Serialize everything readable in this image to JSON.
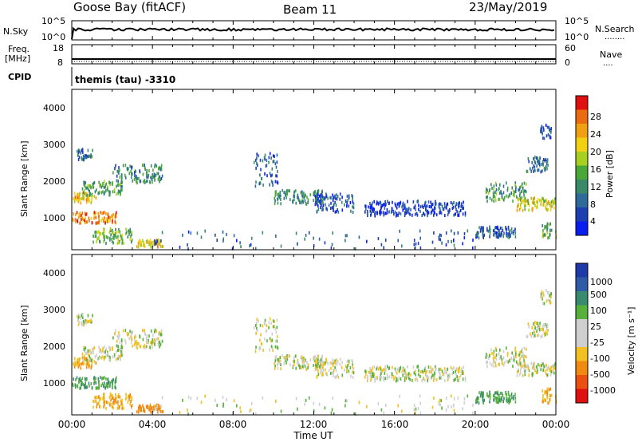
{
  "header": {
    "station": "Goose Bay (fitACF)",
    "beam": "Beam 11",
    "date": "23/May/2019"
  },
  "sky_panel": {
    "left_label": "N.Sky",
    "right_label": "N.Search",
    "left_ticks": [
      "10^5",
      "10^0"
    ],
    "right_ticks": [
      "10^5",
      "10^0"
    ],
    "right_dots": "........"
  },
  "freq_panel": {
    "left_label_top": "Freq.",
    "left_label_bottom": "[MHz]",
    "right_label": "Nave",
    "left_ticks": [
      "18",
      "8"
    ],
    "right_ticks": [
      "60",
      "0"
    ],
    "right_dots": "...."
  },
  "cpid": {
    "label": "CPID",
    "value": "themis (tau) -3310"
  },
  "x_axis": {
    "label": "Time UT",
    "ticks": [
      "00:00",
      "04:00",
      "08:00",
      "12:00",
      "16:00",
      "20:00",
      "00:00"
    ]
  },
  "power_panel": {
    "ylabel": "Slant Range [km]",
    "yticks": [
      "1000",
      "2000",
      "3000",
      "4000"
    ],
    "colorbar_label": "Power [dB]",
    "colorbar_ticks": [
      "4",
      "8",
      "12",
      "16",
      "20",
      "24",
      "28"
    ],
    "colors": [
      "#0b1ef0",
      "#1f3fb0",
      "#2e6a9a",
      "#3a8a6a",
      "#4aa83a",
      "#a8d020",
      "#f2d012",
      "#f0a010",
      "#ec6a10",
      "#e01010"
    ]
  },
  "velocity_panel": {
    "ylabel": "Slant Range [km]",
    "yticks": [
      "1000",
      "2000",
      "3000",
      "4000"
    ],
    "colorbar_label": "Velocity [m s⁻¹]",
    "colorbar_ticks": [
      "1000",
      "500",
      "100",
      "25",
      "-25",
      "-100",
      "-500",
      "-1000"
    ],
    "colors": [
      "#1e3aa8",
      "#2e5aa8",
      "#3a8a70",
      "#56b03a",
      "#cfcfcf",
      "#cfcfcf",
      "#f2c020",
      "#f08a10",
      "#ec5010",
      "#e01010"
    ]
  },
  "chart_data": {
    "type": "heatmap",
    "x_range_hours": [
      0,
      24
    ],
    "y_range_km": [
      180,
      4550
    ],
    "echo_bands": [
      {
        "t0": 0.0,
        "t1": 1.2,
        "r0": 1450,
        "r1": 1750,
        "power_db": 22,
        "velocity_ms": -100
      },
      {
        "t0": 0.0,
        "t1": 2.2,
        "r0": 900,
        "r1": 1200,
        "power_db": 26,
        "velocity_ms": 100
      },
      {
        "t0": 0.5,
        "t1": 2.5,
        "r0": 1650,
        "r1": 2050,
        "power_db": 14,
        "velocity_ms": 0
      },
      {
        "t0": 2.0,
        "t1": 4.5,
        "r0": 2000,
        "r1": 2500,
        "power_db": 12,
        "velocity_ms": 0
      },
      {
        "t0": 0.2,
        "t1": 1.0,
        "r0": 2600,
        "r1": 2950,
        "power_db": 10,
        "velocity_ms": 0
      },
      {
        "t0": 1.0,
        "t1": 3.0,
        "r0": 350,
        "r1": 750,
        "power_db": 16,
        "velocity_ms": -100
      },
      {
        "t0": 3.2,
        "t1": 4.5,
        "r0": 250,
        "r1": 450,
        "power_db": 22,
        "velocity_ms": -300
      },
      {
        "t0": 9.0,
        "t1": 10.2,
        "r0": 1900,
        "r1": 2800,
        "power_db": 8,
        "velocity_ms": 0
      },
      {
        "t0": 10.0,
        "t1": 12.5,
        "r0": 1400,
        "r1": 1800,
        "power_db": 12,
        "velocity_ms": 0
      },
      {
        "t0": 12.0,
        "t1": 14.0,
        "r0": 1200,
        "r1": 1700,
        "power_db": 8,
        "velocity_ms": 0
      },
      {
        "t0": 14.5,
        "t1": 19.5,
        "r0": 1100,
        "r1": 1500,
        "power_db": 6,
        "velocity_ms": 0
      },
      {
        "t0": 20.5,
        "t1": 22.5,
        "r0": 1500,
        "r1": 2000,
        "power_db": 14,
        "velocity_ms": 0
      },
      {
        "t0": 22.0,
        "t1": 24.0,
        "r0": 1250,
        "r1": 1600,
        "power_db": 20,
        "velocity_ms": 0
      },
      {
        "t0": 22.5,
        "t1": 23.6,
        "r0": 2300,
        "r1": 2700,
        "power_db": 10,
        "velocity_ms": 0
      },
      {
        "t0": 23.2,
        "t1": 23.8,
        "r0": 3200,
        "r1": 3600,
        "power_db": 8,
        "velocity_ms": 0
      },
      {
        "t0": 20.0,
        "t1": 22.0,
        "r0": 500,
        "r1": 800,
        "power_db": 8,
        "velocity_ms": 100
      },
      {
        "t0": 23.3,
        "t1": 24.0,
        "r0": 500,
        "r1": 900,
        "power_db": 16,
        "velocity_ms": -100
      },
      {
        "t0": 4.0,
        "t1": 20.0,
        "r0": 200,
        "r1": 700,
        "power_db": 8,
        "velocity_ms": 0
      }
    ]
  }
}
